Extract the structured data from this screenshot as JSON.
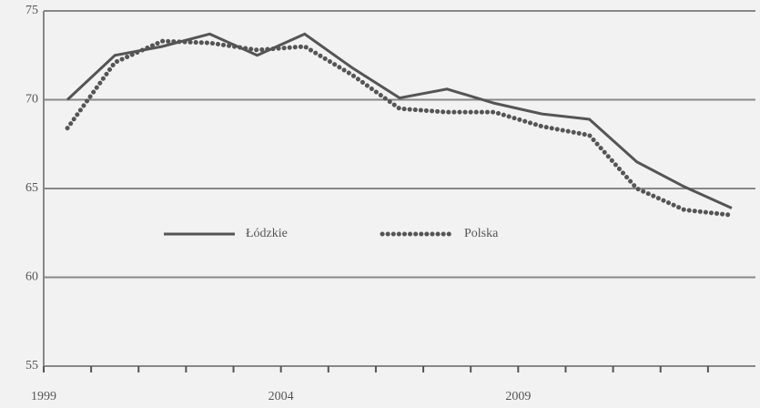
{
  "chart_data": {
    "type": "line",
    "x": [
      1999.5,
      2000.5,
      2001.5,
      2002.5,
      2003.5,
      2004.5,
      2005.5,
      2006.5,
      2007.5,
      2008.5,
      2009.5,
      2010.5,
      2011.5,
      2012.5,
      2013.5
    ],
    "series": [
      {
        "name": "Łódzkie",
        "color": "#555555",
        "style": "solid",
        "values": [
          70.0,
          72.5,
          73.0,
          73.7,
          72.5,
          73.7,
          71.8,
          70.1,
          70.6,
          69.8,
          69.2,
          68.9,
          66.5,
          65.1,
          63.9
        ]
      },
      {
        "name": "Polska",
        "color": "#555555",
        "style": "dotted",
        "values": [
          68.4,
          72.1,
          73.3,
          73.2,
          72.8,
          73.0,
          71.4,
          69.5,
          69.3,
          69.3,
          68.5,
          68.0,
          65.0,
          63.8,
          63.5
        ]
      }
    ],
    "xlim": [
      1999,
      2014
    ],
    "xticks": [
      1999,
      2004,
      2009
    ],
    "xminorticks": [
      2000,
      2001,
      2002,
      2003,
      2005,
      2006,
      2007,
      2008,
      2010,
      2011,
      2012,
      2013
    ],
    "ylim": [
      55,
      75
    ],
    "yticks": [
      55,
      60,
      65,
      70,
      75
    ],
    "grid": true
  }
}
